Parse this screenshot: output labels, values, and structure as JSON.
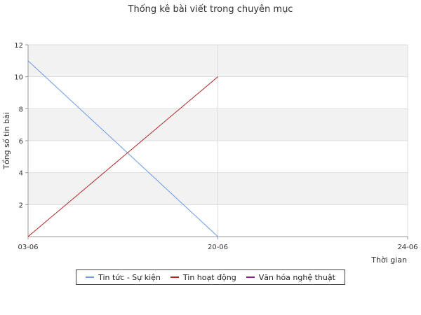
{
  "chart_data": {
    "type": "line",
    "title": "Thống kê bài viết trong chuyên mục",
    "xlabel": "Thời gian",
    "ylabel": "Tổng số tin bài",
    "x": [
      "03-06",
      "20-06",
      "24-06"
    ],
    "ylim": [
      0,
      12
    ],
    "yticks": [
      2,
      4,
      6,
      8,
      10,
      12
    ],
    "grid": true,
    "legend_position": "bottom",
    "series": [
      {
        "name": "Tin tức - Sự kiện",
        "color": "#6b9be6",
        "values": [
          11,
          0,
          null
        ]
      },
      {
        "name": "Tin hoạt động",
        "color": "#b22222",
        "values": [
          0,
          10,
          null
        ]
      },
      {
        "name": "Văn hóa nghệ thuật",
        "color": "#8b1a8b",
        "values": [
          null,
          null,
          null
        ]
      }
    ]
  }
}
